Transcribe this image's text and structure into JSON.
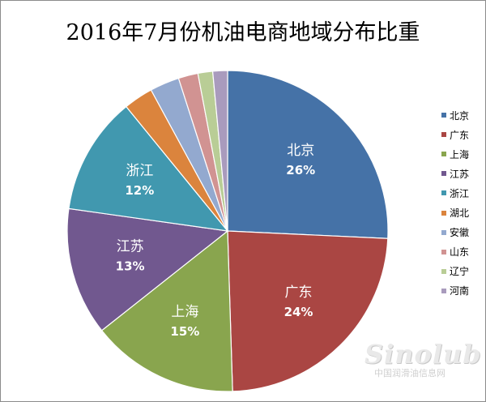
{
  "chart_data": {
    "type": "pie",
    "title": "2016年7月份机油电商地域分布比重",
    "legend_position": "right",
    "slices": [
      {
        "name": "北京",
        "value": 26,
        "label": "26%",
        "color": "#4572a7"
      },
      {
        "name": "广东",
        "value": 24,
        "label": "24%",
        "color": "#aa4643"
      },
      {
        "name": "上海",
        "value": 15,
        "label": "15%",
        "color": "#89a54e"
      },
      {
        "name": "江苏",
        "value": 13,
        "label": "13%",
        "color": "#71588f"
      },
      {
        "name": "浙江",
        "value": 12,
        "label": "12%",
        "color": "#4198af"
      },
      {
        "name": "湖北",
        "value": 3,
        "label": "",
        "color": "#db843d"
      },
      {
        "name": "安徽",
        "value": 3,
        "label": "",
        "color": "#93a9cf"
      },
      {
        "name": "山东",
        "value": 2,
        "label": "",
        "color": "#d19392"
      },
      {
        "name": "辽宁",
        "value": 1.5,
        "label": "",
        "color": "#b9cd96"
      },
      {
        "name": "河南",
        "value": 1.5,
        "label": "",
        "color": "#a99bbd"
      }
    ]
  },
  "watermark": {
    "logo": "Sinolub",
    "text": "中国润滑油信息网"
  }
}
